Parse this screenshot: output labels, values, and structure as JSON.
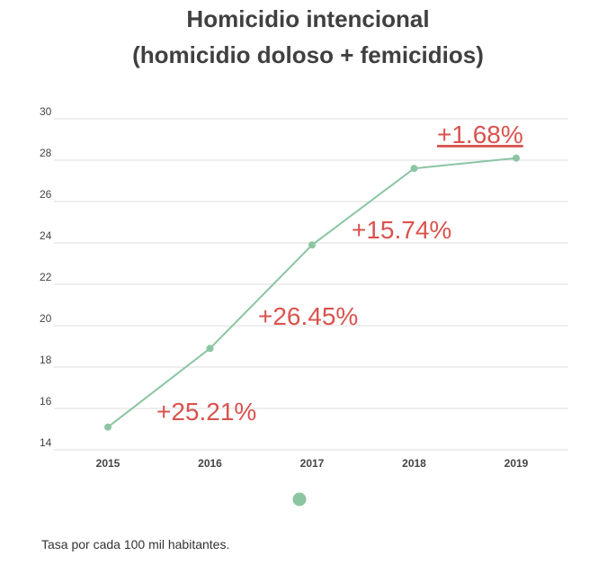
{
  "chart_data": {
    "type": "line",
    "title_line1": "Homicidio intencional",
    "title_line2": "(homicidio doloso + femicidios)",
    "xlabel": "",
    "ylabel": "",
    "categories": [
      "2015",
      "2016",
      "2017",
      "2018",
      "2019"
    ],
    "series": [
      {
        "values": [
          15.1,
          18.9,
          23.9,
          27.6,
          28.1
        ]
      }
    ],
    "ylim": [
      14,
      30
    ],
    "yticks": [
      14,
      16,
      18,
      20,
      22,
      24,
      26,
      28,
      30
    ],
    "grid": true,
    "annotations": [
      {
        "text": "+25.21%",
        "underlined": false
      },
      {
        "text": "+26.45%",
        "underlined": false
      },
      {
        "text": "+15.74%",
        "underlined": false
      },
      {
        "text": "+1.68%",
        "underlined": true
      }
    ],
    "footnote": "Tasa por cada 100 mil habitantes.",
    "colors": {
      "line": "#8cc5a2",
      "annotation": "#d9534f",
      "grid": "#dddddd"
    }
  }
}
